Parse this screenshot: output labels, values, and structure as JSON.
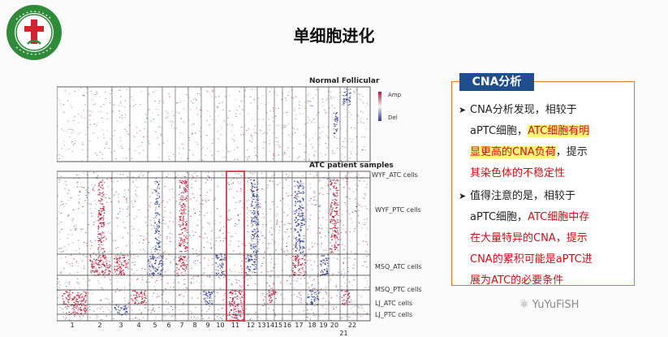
{
  "slide": {
    "title": "单细胞进化"
  },
  "figure": {
    "top_panel_label": "Normal Follicular",
    "bottom_panel_label": "ATC patient samples",
    "legend": {
      "amp": "Amp",
      "del": "Del",
      "amp_color": "#b3122e",
      "del_color": "#2b3a8f"
    },
    "row_labels": [
      "WYF_ATC cells",
      "WYF_PTC cells",
      "MSQ_ATC cells",
      "MSQ_PTC cells",
      "LJ_ATC cells",
      "LJ_PTC cells"
    ],
    "chromosome_labels": [
      "1",
      "2",
      "3",
      "4",
      "5",
      "6",
      "7",
      "8",
      "9",
      "10",
      "11",
      "12",
      "13",
      "14",
      "15",
      "16",
      "17",
      "18",
      "19",
      "20",
      "21",
      "22"
    ],
    "highlight_chromosome": "11",
    "highlight_color": "#d0232e"
  },
  "callout": {
    "title": "CNA分析",
    "bullet1": {
      "part1": "CNA分析发现，相较于",
      "part2": "aPTC细胞，",
      "hl1": "ATC细胞有明",
      "hl2": "显更高的CNA负荷",
      "part3": "，提示",
      "part4": "其染色体的不稳定性"
    },
    "bullet2": {
      "line1": "值得注意的是，相较于",
      "line2a": "aPTC细胞，",
      "line2b": "ATC细胞中存",
      "line3": "在大量特异的CNA，提示",
      "line4": "CNA的累积可能是aPTC进",
      "line5": "展为ATC的必要条件"
    }
  },
  "watermark": "YuYuFiSH"
}
